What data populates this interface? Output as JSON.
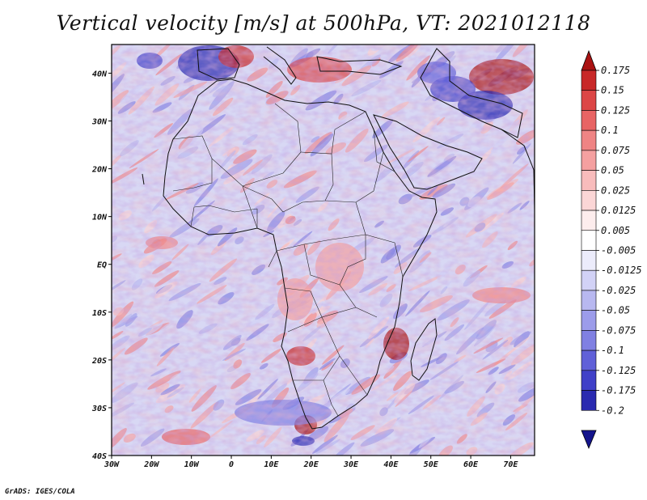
{
  "title": "Vertical velocity [m/s] at 500hPa, VT: 2021012118",
  "credit": "GrADS: IGES/COLA",
  "chart_data": {
    "type": "heatmap",
    "title": "Vertical velocity [m/s] at 500hPa, VT: 2021012118",
    "variable": "Vertical velocity",
    "units": "m/s",
    "level": "500hPa",
    "valid_time": "2021012118",
    "x_range_deg": [
      -30,
      76
    ],
    "y_range_deg": [
      -40,
      46
    ],
    "x_ticks": [
      {
        "value": -30,
        "label": "30W"
      },
      {
        "value": -20,
        "label": "20W"
      },
      {
        "value": -10,
        "label": "10W"
      },
      {
        "value": 0,
        "label": "0"
      },
      {
        "value": 10,
        "label": "10E"
      },
      {
        "value": 20,
        "label": "20E"
      },
      {
        "value": 30,
        "label": "30E"
      },
      {
        "value": 40,
        "label": "40E"
      },
      {
        "value": 50,
        "label": "50E"
      },
      {
        "value": 60,
        "label": "60E"
      },
      {
        "value": 70,
        "label": "70E"
      }
    ],
    "y_ticks": [
      {
        "value": 40,
        "label": "40N"
      },
      {
        "value": 30,
        "label": "30N"
      },
      {
        "value": 20,
        "label": "20N"
      },
      {
        "value": 10,
        "label": "10N"
      },
      {
        "value": 0,
        "label": "EQ"
      },
      {
        "value": -10,
        "label": "10S"
      },
      {
        "value": -20,
        "label": "20S"
      },
      {
        "value": -30,
        "label": "30S"
      },
      {
        "value": -40,
        "label": "40S"
      }
    ],
    "colorbar": {
      "labels": [
        "0.175",
        "0.15",
        "0.125",
        "0.1",
        "0.075",
        "0.05",
        "0.025",
        "0.0125",
        "0.005",
        "-0.005",
        "-0.0125",
        "-0.025",
        "-0.05",
        "-0.075",
        "-0.1",
        "-0.125",
        "-0.175",
        "-0.2"
      ],
      "colors": [
        "#aa1212",
        "#c82828",
        "#dc4646",
        "#e86464",
        "#ef8484",
        "#f4a0a0",
        "#f8bcbc",
        "#fbd6d6",
        "#fdeded",
        "#ffffff",
        "#ececfb",
        "#d2d2f6",
        "#b8b8f0",
        "#9c9cea",
        "#8080e2",
        "#6060d8",
        "#4040c8",
        "#2a2ab0",
        "#14148c"
      ]
    },
    "features": [
      {
        "region": "Mediterranean / N Africa",
        "sign": "mixed strong"
      },
      {
        "region": "Arabian Sea / Iran",
        "sign": "mixed strong"
      },
      {
        "region": "Mozambique Channel (~40E, 15S)",
        "sign": "upward"
      },
      {
        "region": "SW Africa coast (~20E, 35S)",
        "sign": "mixed strong"
      },
      {
        "region": "Central Africa",
        "sign": "upward"
      },
      {
        "region": "Sahara",
        "sign": "downward"
      },
      {
        "region": "South Atlantic",
        "sign": "downward"
      }
    ]
  }
}
